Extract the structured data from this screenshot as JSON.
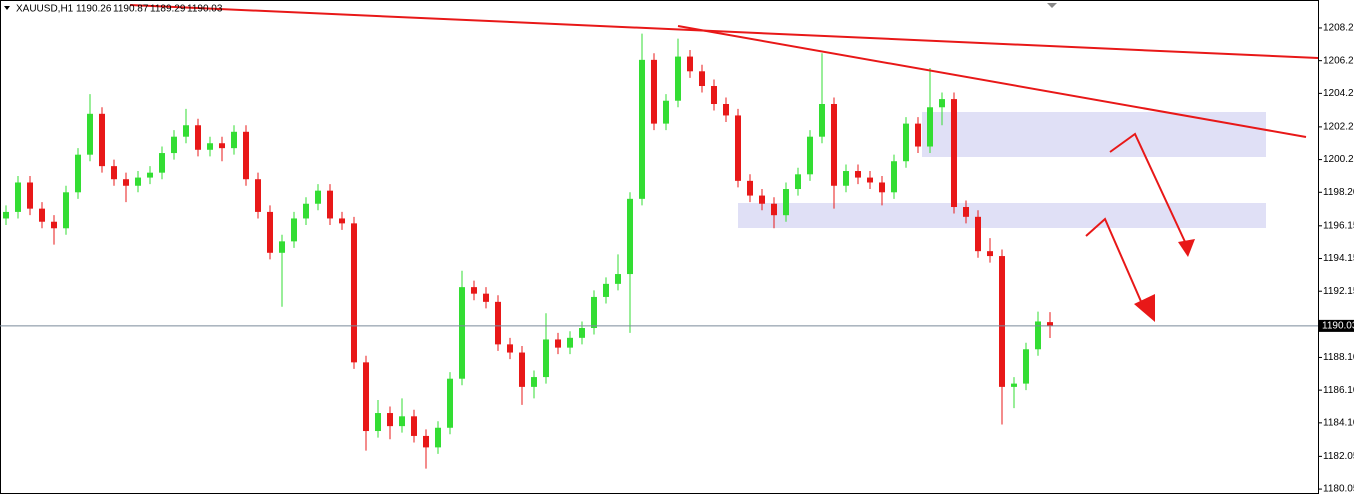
{
  "chart_data": {
    "type": "candlestick",
    "title": "XAUUSD,H1",
    "header_values": [
      1190.26,
      1190.87,
      1189.29,
      1190.03
    ],
    "up_color": "#33dd33",
    "down_color": "#e81818",
    "ylim": [
      1179.81,
      1209.96
    ],
    "yticks": [
      1180.05,
      1182.05,
      {
        "value": 1184.1,
        "label": "1184.10"
      },
      {
        "value": 1186.1,
        "label": "1186.10"
      },
      {
        "value": 1188.1,
        "label": "1188.10"
      },
      1192.15,
      1194.15,
      1196.15,
      {
        "value": 1198.2,
        "label": "1198.20"
      },
      {
        "value": 1200.2,
        "label": "1200.20"
      },
      {
        "value": 1202.2,
        "label": "1202.20"
      },
      1204.25,
      1206.25,
      1208.25
    ],
    "price_line": 1190.03,
    "candles": [
      [
        1196.6,
        1197.4,
        1196.2,
        1197.0
      ],
      [
        1197.0,
        1199.2,
        1196.6,
        1198.8
      ],
      [
        1198.8,
        1199.2,
        1196.8,
        1197.2
      ],
      [
        1197.2,
        1197.6,
        1196.0,
        1196.4
      ],
      [
        1196.4,
        1196.8,
        1195.0,
        1196.0
      ],
      [
        1196.0,
        1198.6,
        1195.6,
        1198.2
      ],
      [
        1198.2,
        1200.9,
        1197.8,
        1200.5
      ],
      [
        1200.5,
        1204.2,
        1200.1,
        1203.0
      ],
      [
        1203.0,
        1203.4,
        1199.4,
        1199.8
      ],
      [
        1199.8,
        1200.2,
        1198.6,
        1199.0
      ],
      [
        1199.0,
        1199.4,
        1197.6,
        1198.6
      ],
      [
        1198.6,
        1199.5,
        1198.2,
        1199.1
      ],
      [
        1199.1,
        1199.8,
        1198.7,
        1199.4
      ],
      [
        1199.4,
        1201.0,
        1199.0,
        1200.6
      ],
      [
        1200.6,
        1202.0,
        1200.2,
        1201.6
      ],
      [
        1201.6,
        1203.3,
        1201.2,
        1202.3
      ],
      [
        1202.3,
        1202.7,
        1200.4,
        1200.8
      ],
      [
        1200.8,
        1201.6,
        1200.4,
        1201.2
      ],
      [
        1201.2,
        1201.6,
        1200.1,
        1200.9
      ],
      [
        1200.9,
        1202.3,
        1200.5,
        1201.9
      ],
      [
        1201.9,
        1202.3,
        1198.6,
        1199.0
      ],
      [
        1199.0,
        1199.4,
        1196.6,
        1197.0
      ],
      [
        1197.0,
        1197.4,
        1194.1,
        1194.5
      ],
      [
        1194.5,
        1195.6,
        1191.2,
        1195.2
      ],
      [
        1195.2,
        1197.0,
        1194.8,
        1196.6
      ],
      [
        1196.6,
        1197.9,
        1196.2,
        1197.5
      ],
      [
        1197.5,
        1198.7,
        1197.1,
        1198.3
      ],
      [
        1198.3,
        1198.7,
        1196.2,
        1196.6
      ],
      [
        1196.6,
        1197.0,
        1195.9,
        1196.3
      ],
      [
        1196.3,
        1196.7,
        1187.4,
        1187.8
      ],
      [
        1187.8,
        1188.2,
        1182.4,
        1183.6
      ],
      [
        1183.6,
        1185.5,
        1183.2,
        1184.7
      ],
      [
        1184.7,
        1185.1,
        1183.1,
        1183.9
      ],
      [
        1183.9,
        1185.6,
        1183.5,
        1184.5
      ],
      [
        1184.5,
        1184.9,
        1182.9,
        1183.3
      ],
      [
        1183.3,
        1183.7,
        1181.3,
        1182.6
      ],
      [
        1182.6,
        1184.2,
        1182.2,
        1183.8
      ],
      [
        1183.8,
        1187.2,
        1183.4,
        1186.8
      ],
      [
        1186.8,
        1193.4,
        1186.4,
        1192.4
      ],
      [
        1192.4,
        1192.8,
        1191.6,
        1192.0
      ],
      [
        1192.0,
        1192.4,
        1191.1,
        1191.5
      ],
      [
        1191.5,
        1191.9,
        1188.5,
        1188.9
      ],
      [
        1188.9,
        1189.3,
        1188.0,
        1188.4
      ],
      [
        1188.4,
        1188.8,
        1185.2,
        1186.3
      ],
      [
        1186.3,
        1187.3,
        1185.6,
        1186.9
      ],
      [
        1186.9,
        1190.8,
        1186.5,
        1189.2
      ],
      [
        1189.2,
        1189.6,
        1188.3,
        1188.7
      ],
      [
        1188.7,
        1189.7,
        1188.3,
        1189.3
      ],
      [
        1189.3,
        1190.3,
        1188.9,
        1189.9
      ],
      [
        1189.9,
        1192.2,
        1189.5,
        1191.8
      ],
      [
        1191.8,
        1193.0,
        1191.4,
        1192.6
      ],
      [
        1192.6,
        1194.4,
        1192.2,
        1193.2
      ],
      [
        1193.2,
        1198.2,
        1189.6,
        1197.8
      ],
      [
        1197.8,
        1207.9,
        1197.4,
        1206.3
      ],
      [
        1206.3,
        1206.7,
        1202.0,
        1202.4
      ],
      [
        1202.4,
        1204.2,
        1202.0,
        1203.8
      ],
      [
        1203.8,
        1207.6,
        1203.4,
        1206.5
      ],
      [
        1206.5,
        1206.9,
        1205.2,
        1205.6
      ],
      [
        1205.6,
        1206.0,
        1204.3,
        1204.7
      ],
      [
        1204.7,
        1205.1,
        1203.2,
        1203.6
      ],
      [
        1203.6,
        1204.0,
        1202.5,
        1202.9
      ],
      [
        1202.9,
        1203.3,
        1198.5,
        1198.9
      ],
      [
        1198.9,
        1199.3,
        1197.6,
        1198.0
      ],
      [
        1198.0,
        1198.4,
        1197.1,
        1197.5
      ],
      [
        1197.5,
        1197.9,
        1196.0,
        1196.8
      ],
      [
        1196.8,
        1198.8,
        1196.4,
        1198.4
      ],
      [
        1198.4,
        1199.7,
        1198.0,
        1199.3
      ],
      [
        1199.3,
        1202.0,
        1198.9,
        1201.6
      ],
      [
        1201.6,
        1206.7,
        1201.2,
        1203.6
      ],
      [
        1203.6,
        1204.0,
        1197.2,
        1198.6
      ],
      [
        1198.6,
        1199.9,
        1198.2,
        1199.5
      ],
      [
        1199.5,
        1199.9,
        1198.7,
        1199.1
      ],
      [
        1199.1,
        1199.5,
        1198.4,
        1198.8
      ],
      [
        1198.8,
        1199.2,
        1197.4,
        1198.2
      ],
      [
        1198.2,
        1200.5,
        1197.8,
        1200.1
      ],
      [
        1200.1,
        1202.8,
        1199.7,
        1202.4
      ],
      [
        1202.4,
        1202.8,
        1200.6,
        1201.0
      ],
      [
        1201.0,
        1205.8,
        1200.6,
        1203.4
      ],
      [
        1203.4,
        1204.3,
        1202.3,
        1203.9
      ],
      [
        1203.9,
        1204.3,
        1196.9,
        1197.3
      ],
      [
        1197.3,
        1197.7,
        1196.3,
        1196.7
      ],
      [
        1196.7,
        1197.1,
        1194.2,
        1194.6
      ],
      [
        1194.6,
        1195.4,
        1193.9,
        1194.3
      ],
      [
        1194.3,
        1194.7,
        1184.0,
        1186.3
      ],
      [
        1186.3,
        1186.9,
        1185.0,
        1186.5
      ],
      [
        1186.5,
        1189.0,
        1186.1,
        1188.6
      ],
      [
        1188.6,
        1190.9,
        1188.2,
        1190.3
      ],
      [
        1190.26,
        1190.87,
        1189.29,
        1190.03
      ]
    ]
  }
}
